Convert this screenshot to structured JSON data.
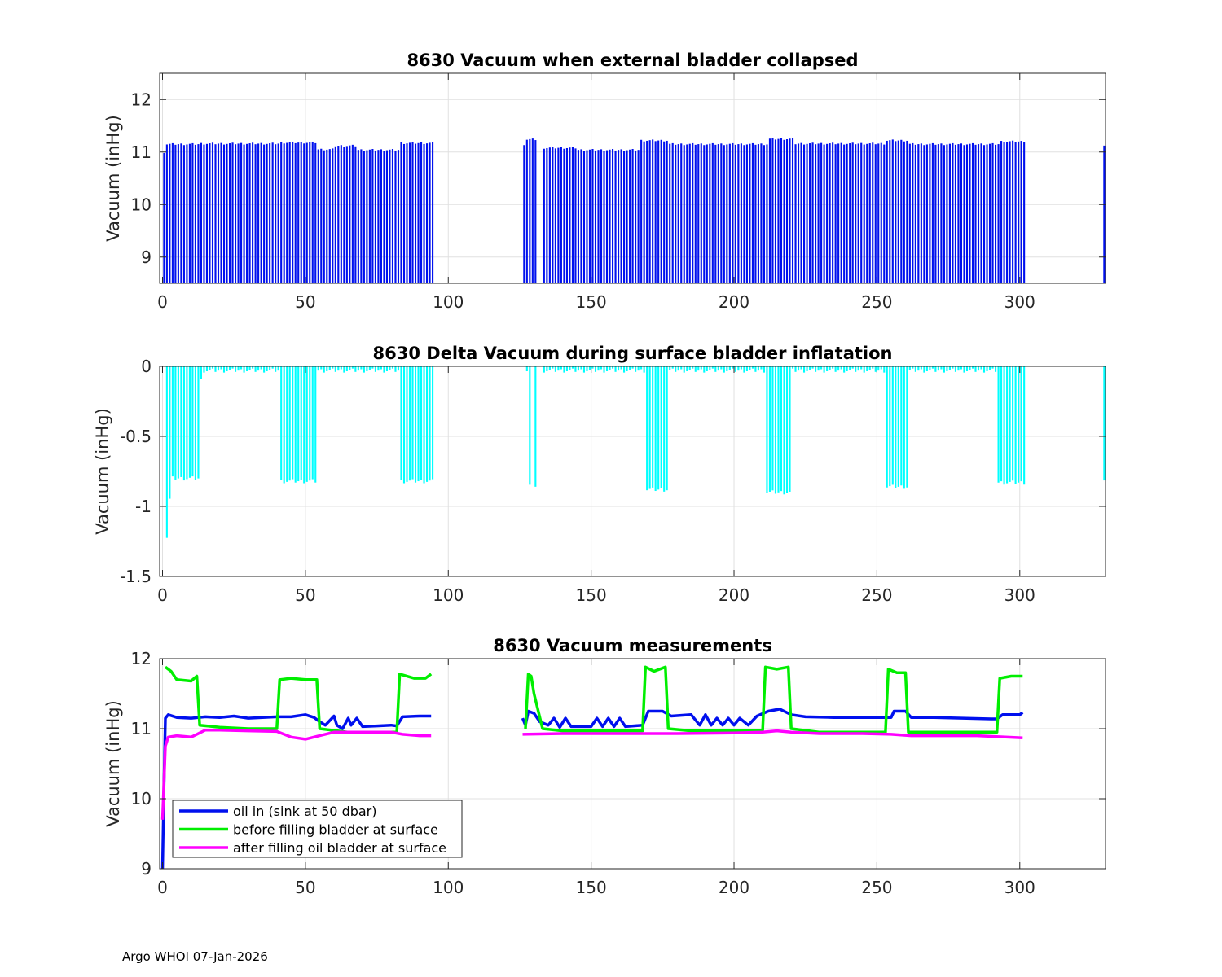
{
  "footer": {
    "text": "Argo WHOI 07-Jan-2026"
  },
  "colors": {
    "blue": "#0010ee",
    "cyan": "#00ffff",
    "green": "#00ee00",
    "magenta": "#ff00ff",
    "grid": "#e0e0e0"
  },
  "chart_data": [
    {
      "type": "bar",
      "title": "8630 Vacuum when external bladder collapsed",
      "xlabel": "",
      "ylabel": "Vacuum (inHg)",
      "xlim": [
        -1,
        330
      ],
      "ylim": [
        8.5,
        12.5
      ],
      "xticks": [
        0,
        50,
        100,
        150,
        200,
        250,
        300
      ],
      "yticks": [
        9,
        10,
        11,
        12
      ],
      "grid": true,
      "color": "blue",
      "segments": [
        {
          "x0": 0,
          "x1": 1,
          "value": 11.0
        },
        {
          "x0": 1,
          "x1": 13,
          "value": 11.15
        },
        {
          "x0": 13,
          "x1": 41,
          "value": 11.16
        },
        {
          "x0": 41,
          "x1": 54,
          "value": 11.18
        },
        {
          "x0": 54,
          "x1": 60,
          "value": 11.05
        },
        {
          "x0": 60,
          "x1": 68,
          "value": 11.12
        },
        {
          "x0": 68,
          "x1": 83,
          "value": 11.04
        },
        {
          "x0": 83,
          "x1": 95,
          "value": 11.17
        },
        {
          "x0": 126,
          "x1": 127,
          "value": 11.15
        },
        {
          "x0": 127,
          "x1": 131,
          "value": 11.24
        },
        {
          "x0": 133,
          "x1": 145,
          "value": 11.08
        },
        {
          "x0": 145,
          "x1": 167,
          "value": 11.04
        },
        {
          "x0": 167,
          "x1": 177,
          "value": 11.22
        },
        {
          "x0": 177,
          "x1": 212,
          "value": 11.15
        },
        {
          "x0": 212,
          "x1": 221,
          "value": 11.25
        },
        {
          "x0": 221,
          "x1": 253,
          "value": 11.16
        },
        {
          "x0": 253,
          "x1": 261,
          "value": 11.22
        },
        {
          "x0": 261,
          "x1": 293,
          "value": 11.15
        },
        {
          "x0": 293,
          "x1": 302,
          "value": 11.2
        },
        {
          "x0": 329,
          "x1": 330,
          "value": 11.14
        }
      ]
    },
    {
      "type": "bar",
      "title": "8630 Delta Vacuum during surface bladder inflatation",
      "xlabel": "",
      "ylabel": "Vacuum (inHg)",
      "xlim": [
        -1,
        330
      ],
      "ylim": [
        -1.5,
        0
      ],
      "xticks": [
        0,
        50,
        100,
        150,
        200,
        250,
        300
      ],
      "yticks": [
        0,
        -0.5,
        -1,
        -1.5
      ],
      "ytick_labels": [
        "0",
        "-0.5",
        "-1",
        "-1.5"
      ],
      "grid": true,
      "color": "cyan",
      "segments": [
        {
          "x0": 1,
          "x1": 2,
          "value": -1.22
        },
        {
          "x0": 2,
          "x1": 3,
          "value": -0.95
        },
        {
          "x0": 3,
          "x1": 13,
          "value": -0.8
        },
        {
          "x0": 13,
          "x1": 14,
          "value": -0.1
        },
        {
          "x0": 14,
          "x1": 41,
          "value": -0.03
        },
        {
          "x0": 41,
          "x1": 54,
          "value": -0.82
        },
        {
          "x0": 54,
          "x1": 83,
          "value": -0.03
        },
        {
          "x0": 83,
          "x1": 95,
          "value": -0.82
        },
        {
          "x0": 127,
          "x1": 128,
          "value": -0.03
        },
        {
          "x0": 128,
          "x1": 129,
          "value": -0.85
        },
        {
          "x0": 130,
          "x1": 131,
          "value": -0.85
        },
        {
          "x0": 133,
          "x1": 169,
          "value": -0.03
        },
        {
          "x0": 169,
          "x1": 177,
          "value": -0.88
        },
        {
          "x0": 177,
          "x1": 211,
          "value": -0.03
        },
        {
          "x0": 211,
          "x1": 220,
          "value": -0.9
        },
        {
          "x0": 220,
          "x1": 253,
          "value": -0.03
        },
        {
          "x0": 253,
          "x1": 261,
          "value": -0.86
        },
        {
          "x0": 261,
          "x1": 292,
          "value": -0.03
        },
        {
          "x0": 292,
          "x1": 302,
          "value": -0.83
        },
        {
          "x0": 329,
          "x1": 330,
          "value": -0.8
        }
      ]
    },
    {
      "type": "line",
      "title": "8630 Vacuum measurements",
      "xlabel": "",
      "ylabel": "Vacuum (inHg)",
      "xlim": [
        -1,
        330
      ],
      "ylim": [
        9,
        12
      ],
      "xticks": [
        0,
        50,
        100,
        150,
        200,
        250,
        300
      ],
      "yticks": [
        9,
        10,
        11,
        12
      ],
      "grid": true,
      "legend_position": "bottom-left",
      "series": [
        {
          "name": "oil in (sink at 50 dbar)",
          "color": "blue",
          "segments": [
            [
              [
                0,
                9.0
              ],
              [
                0.5,
                10.2
              ],
              [
                1,
                11.15
              ],
              [
                2,
                11.2
              ],
              [
                5,
                11.16
              ],
              [
                10,
                11.15
              ],
              [
                15,
                11.17
              ],
              [
                20,
                11.16
              ],
              [
                25,
                11.18
              ],
              [
                30,
                11.15
              ],
              [
                35,
                11.16
              ],
              [
                40,
                11.17
              ],
              [
                45,
                11.17
              ],
              [
                50,
                11.2
              ],
              [
                53,
                11.16
              ],
              [
                55,
                11.1
              ],
              [
                57,
                11.05
              ],
              [
                60,
                11.18
              ],
              [
                61,
                11.05
              ],
              [
                63,
                11.0
              ],
              [
                65,
                11.15
              ],
              [
                66,
                11.05
              ],
              [
                68,
                11.15
              ],
              [
                70,
                11.03
              ],
              [
                75,
                11.04
              ],
              [
                80,
                11.05
              ],
              [
                82,
                11.04
              ],
              [
                84,
                11.17
              ],
              [
                90,
                11.18
              ],
              [
                94,
                11.18
              ]
            ],
            [
              [
                126,
                11.15
              ],
              [
                127,
                11.05
              ],
              [
                128,
                11.25
              ],
              [
                130,
                11.22
              ],
              [
                132,
                11.1
              ],
              [
                135,
                11.05
              ],
              [
                137,
                11.15
              ],
              [
                139,
                11.02
              ],
              [
                141,
                11.15
              ],
              [
                143,
                11.03
              ],
              [
                150,
                11.03
              ],
              [
                152,
                11.15
              ],
              [
                154,
                11.03
              ],
              [
                156,
                11.15
              ],
              [
                158,
                11.03
              ],
              [
                160,
                11.15
              ],
              [
                162,
                11.03
              ],
              [
                168,
                11.05
              ],
              [
                170,
                11.25
              ],
              [
                175,
                11.25
              ],
              [
                178,
                11.18
              ],
              [
                185,
                11.2
              ],
              [
                188,
                11.05
              ],
              [
                190,
                11.2
              ],
              [
                192,
                11.05
              ],
              [
                194,
                11.15
              ],
              [
                196,
                11.05
              ],
              [
                198,
                11.15
              ],
              [
                200,
                11.05
              ],
              [
                202,
                11.15
              ],
              [
                205,
                11.05
              ],
              [
                208,
                11.18
              ],
              [
                212,
                11.25
              ],
              [
                216,
                11.28
              ],
              [
                220,
                11.2
              ],
              [
                225,
                11.17
              ],
              [
                235,
                11.16
              ],
              [
                245,
                11.16
              ],
              [
                255,
                11.16
              ],
              [
                256,
                11.25
              ],
              [
                260,
                11.25
              ],
              [
                262,
                11.16
              ],
              [
                270,
                11.16
              ],
              [
                280,
                11.15
              ],
              [
                290,
                11.14
              ],
              [
                292,
                11.14
              ],
              [
                294,
                11.2
              ],
              [
                300,
                11.2
              ],
              [
                301,
                11.23
              ]
            ]
          ]
        },
        {
          "name": "before filling bladder at surface",
          "color": "green",
          "segments": [
            [
              [
                1,
                11.88
              ],
              [
                3,
                11.82
              ],
              [
                5,
                11.7
              ],
              [
                10,
                11.68
              ],
              [
                12,
                11.75
              ],
              [
                13,
                11.05
              ],
              [
                20,
                11.02
              ],
              [
                30,
                11.0
              ],
              [
                40,
                11.0
              ],
              [
                41,
                11.7
              ],
              [
                45,
                11.72
              ],
              [
                50,
                11.7
              ],
              [
                54,
                11.7
              ],
              [
                55,
                11.0
              ],
              [
                65,
                10.95
              ],
              [
                75,
                10.95
              ],
              [
                82,
                10.95
              ],
              [
                83,
                11.78
              ],
              [
                88,
                11.72
              ],
              [
                92,
                11.72
              ],
              [
                94,
                11.78
              ]
            ],
            [
              [
                127,
                11.0
              ],
              [
                128,
                11.78
              ],
              [
                129,
                11.75
              ],
              [
                130,
                11.5
              ],
              [
                133,
                11.0
              ],
              [
                140,
                10.97
              ],
              [
                150,
                10.97
              ],
              [
                160,
                10.97
              ],
              [
                168,
                10.97
              ],
              [
                169,
                11.88
              ],
              [
                172,
                11.82
              ],
              [
                176,
                11.88
              ],
              [
                177,
                11.0
              ],
              [
                185,
                10.97
              ],
              [
                200,
                10.97
              ],
              [
                210,
                10.97
              ],
              [
                211,
                11.88
              ],
              [
                215,
                11.85
              ],
              [
                219,
                11.88
              ],
              [
                220,
                11.0
              ],
              [
                230,
                10.95
              ],
              [
                245,
                10.95
              ],
              [
                253,
                10.95
              ],
              [
                254,
                11.85
              ],
              [
                257,
                11.8
              ],
              [
                260,
                11.8
              ],
              [
                261,
                10.95
              ],
              [
                275,
                10.95
              ],
              [
                285,
                10.95
              ],
              [
                292,
                10.95
              ],
              [
                293,
                11.72
              ],
              [
                297,
                11.75
              ],
              [
                301,
                11.75
              ]
            ]
          ]
        },
        {
          "name": "after filling oil bladder at surface",
          "color": "magenta",
          "segments": [
            [
              [
                0,
                9.7
              ],
              [
                1,
                10.75
              ],
              [
                2,
                10.88
              ],
              [
                5,
                10.9
              ],
              [
                10,
                10.88
              ],
              [
                12,
                10.92
              ],
              [
                15,
                10.98
              ],
              [
                20,
                10.98
              ],
              [
                30,
                10.97
              ],
              [
                40,
                10.96
              ],
              [
                45,
                10.88
              ],
              [
                50,
                10.85
              ],
              [
                53,
                10.88
              ],
              [
                55,
                10.9
              ],
              [
                60,
                10.95
              ],
              [
                70,
                10.95
              ],
              [
                80,
                10.95
              ],
              [
                84,
                10.92
              ],
              [
                90,
                10.9
              ],
              [
                94,
                10.9
              ]
            ],
            [
              [
                126,
                10.92
              ],
              [
                140,
                10.93
              ],
              [
                160,
                10.93
              ],
              [
                180,
                10.93
              ],
              [
                200,
                10.94
              ],
              [
                210,
                10.95
              ],
              [
                215,
                10.97
              ],
              [
                220,
                10.95
              ],
              [
                230,
                10.93
              ],
              [
                245,
                10.93
              ],
              [
                255,
                10.92
              ],
              [
                262,
                10.9
              ],
              [
                270,
                10.9
              ],
              [
                285,
                10.9
              ],
              [
                295,
                10.88
              ],
              [
                301,
                10.87
              ]
            ]
          ]
        }
      ]
    }
  ]
}
